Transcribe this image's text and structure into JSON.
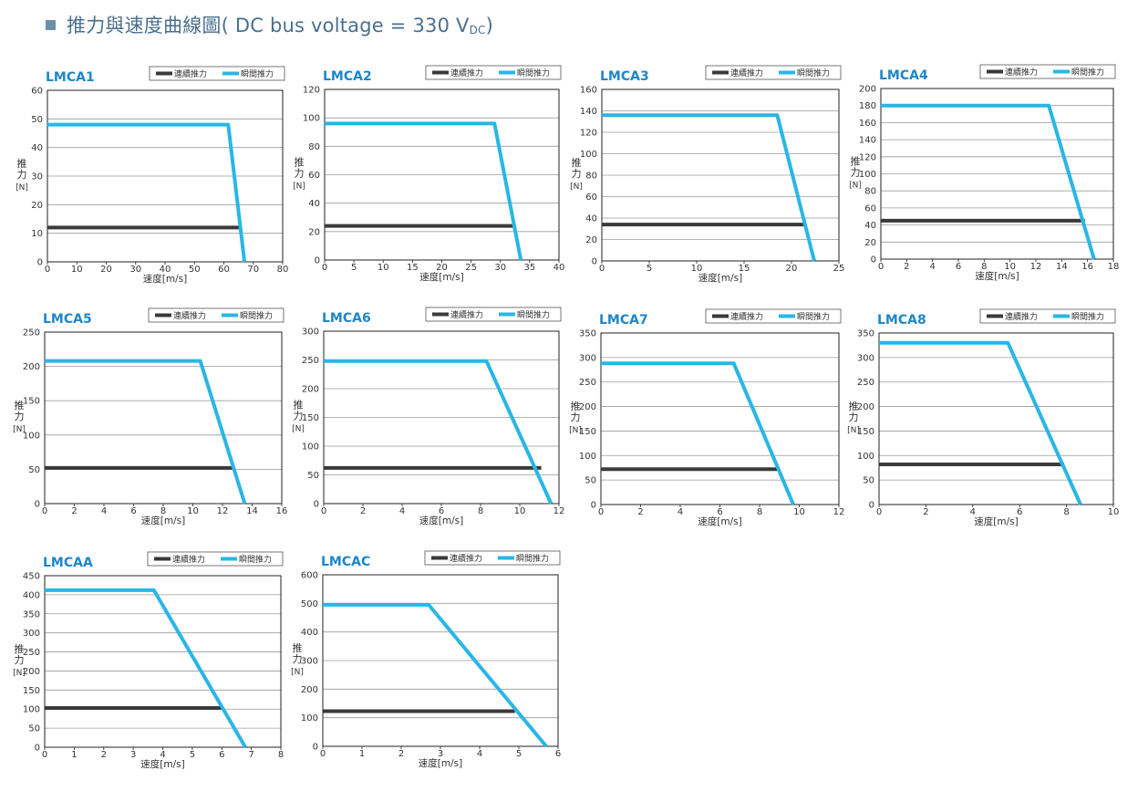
{
  "page": {
    "title_main": "推力與速度曲線圖( DC bus voltage = 330 V",
    "title_sub": "DC",
    "title_end": ")"
  },
  "colors": {
    "continuous": "#3a3a3a",
    "peak": "#29b6e6",
    "title": "#1f86c8",
    "grid": "#9a9a9a"
  },
  "chart_data": [
    {
      "title": "LMCA1",
      "type": "line",
      "xlabel": "速度[m/s]",
      "ylabel": "推力 [N]",
      "xticks": [
        0,
        10,
        20,
        30,
        40,
        50,
        60,
        70,
        80
      ],
      "yticks": [
        0,
        10,
        20,
        30,
        40,
        50,
        60
      ],
      "xlim": [
        0,
        80
      ],
      "ylim": [
        0,
        60
      ],
      "legend": [
        "連續推力",
        "瞬間推力"
      ],
      "legend_position": "top-right",
      "series": [
        {
          "name": "連續推力",
          "x": [
            0,
            65.5
          ],
          "y": [
            12,
            12
          ]
        },
        {
          "name": "瞬間推力",
          "x": [
            0,
            61.5,
            67
          ],
          "y": [
            48,
            48,
            0
          ]
        }
      ]
    },
    {
      "title": "LMCA2",
      "type": "line",
      "xlabel": "速度[m/s]",
      "ylabel": "推力 [N]",
      "xticks": [
        0,
        5,
        10,
        15,
        20,
        25,
        30,
        35,
        40
      ],
      "yticks": [
        0,
        20,
        40,
        60,
        80,
        100,
        120
      ],
      "xlim": [
        0,
        40
      ],
      "ylim": [
        0,
        120
      ],
      "legend": [
        "連續推力",
        "瞬間推力"
      ],
      "legend_position": "top-right",
      "series": [
        {
          "name": "連續推力",
          "x": [
            0,
            32.5
          ],
          "y": [
            24,
            24
          ]
        },
        {
          "name": "瞬間推力",
          "x": [
            0,
            29,
            33.5
          ],
          "y": [
            96,
            96,
            0
          ]
        }
      ]
    },
    {
      "title": "LMCA3",
      "type": "line",
      "xlabel": "速度[m/s]",
      "ylabel": "推力 [N]",
      "xticks": [
        0,
        5,
        10,
        15,
        20,
        25
      ],
      "yticks": [
        0,
        20,
        40,
        60,
        80,
        100,
        120,
        140,
        160
      ],
      "xlim": [
        0,
        25
      ],
      "ylim": [
        0,
        160
      ],
      "legend": [
        "連續推力",
        "瞬間推力"
      ],
      "legend_position": "top-right",
      "series": [
        {
          "name": "連續推力",
          "x": [
            0,
            21.3
          ],
          "y": [
            34,
            34
          ]
        },
        {
          "name": "瞬間推力",
          "x": [
            0,
            18.5,
            22.4
          ],
          "y": [
            136,
            136,
            0
          ]
        }
      ]
    },
    {
      "title": "LMCA4",
      "type": "line",
      "xlabel": "速度[m/s]",
      "ylabel": "推力 [N]",
      "xticks": [
        0,
        2,
        4,
        6,
        8,
        10,
        12,
        14,
        16,
        18
      ],
      "yticks": [
        0,
        20,
        40,
        60,
        80,
        100,
        120,
        140,
        160,
        180,
        200
      ],
      "xlim": [
        0,
        18
      ],
      "ylim": [
        0,
        200
      ],
      "legend": [
        "連續推力",
        "瞬間推力"
      ],
      "legend_position": "top-right",
      "series": [
        {
          "name": "連續推力",
          "x": [
            0,
            15.8
          ],
          "y": [
            45,
            45
          ]
        },
        {
          "name": "瞬間推力",
          "x": [
            0,
            13,
            16.5
          ],
          "y": [
            180,
            180,
            0
          ]
        }
      ]
    },
    {
      "title": "LMCA5",
      "type": "line",
      "xlabel": "速度[m/s]",
      "ylabel": "推力 [N]",
      "xticks": [
        0,
        2,
        4,
        6,
        8,
        10,
        12,
        14,
        16
      ],
      "yticks": [
        0,
        50,
        100,
        150,
        200,
        250
      ],
      "xlim": [
        0,
        16
      ],
      "ylim": [
        0,
        250
      ],
      "legend": [
        "連續推力",
        "瞬間推力"
      ],
      "legend_position": "top-right",
      "series": [
        {
          "name": "連續推力",
          "x": [
            0,
            12.8
          ],
          "y": [
            52,
            52
          ]
        },
        {
          "name": "瞬間推力",
          "x": [
            0,
            10.5,
            13.5
          ],
          "y": [
            208,
            208,
            0
          ]
        }
      ]
    },
    {
      "title": "LMCA6",
      "type": "line",
      "xlabel": "速度[m/s]",
      "ylabel": "推力 [N]",
      "xticks": [
        0,
        2,
        4,
        6,
        8,
        10,
        12
      ],
      "yticks": [
        0,
        50,
        100,
        150,
        200,
        250,
        300
      ],
      "xlim": [
        0,
        12
      ],
      "ylim": [
        0,
        300
      ],
      "legend": [
        "連續推力",
        "瞬間推力"
      ],
      "legend_position": "top-right",
      "series": [
        {
          "name": "連續推力",
          "x": [
            0,
            11.1
          ],
          "y": [
            62,
            62
          ]
        },
        {
          "name": "瞬間推力",
          "x": [
            0,
            8.3,
            11.6
          ],
          "y": [
            248,
            248,
            0
          ]
        }
      ]
    },
    {
      "title": "LMCA7",
      "type": "line",
      "xlabel": "速度[m/s]",
      "ylabel": "推力 [N]",
      "xticks": [
        0,
        2,
        4,
        6,
        8,
        10,
        12
      ],
      "yticks": [
        0,
        50,
        100,
        150,
        200,
        250,
        300,
        350
      ],
      "xlim": [
        0,
        12
      ],
      "ylim": [
        0,
        350
      ],
      "legend": [
        "連續推力",
        "瞬間推力"
      ],
      "legend_position": "top-right",
      "series": [
        {
          "name": "連續推力",
          "x": [
            0,
            9
          ],
          "y": [
            72,
            72
          ]
        },
        {
          "name": "瞬間推力",
          "x": [
            0,
            6.7,
            9.7
          ],
          "y": [
            288,
            288,
            0
          ]
        }
      ]
    },
    {
      "title": "LMCA8",
      "type": "line",
      "xlabel": "速度[m/s]",
      "ylabel": "推力 [N]",
      "xticks": [
        0,
        2,
        4,
        6,
        8,
        10
      ],
      "yticks": [
        0,
        50,
        100,
        150,
        200,
        250,
        300,
        350
      ],
      "xlim": [
        0,
        10
      ],
      "ylim": [
        0,
        350
      ],
      "legend": [
        "連續推力",
        "瞬間推力"
      ],
      "legend_position": "top-right",
      "series": [
        {
          "name": "連續推力",
          "x": [
            0,
            7.9
          ],
          "y": [
            82,
            82
          ]
        },
        {
          "name": "瞬間推力",
          "x": [
            0,
            5.5,
            8.6
          ],
          "y": [
            330,
            330,
            0
          ]
        }
      ]
    },
    {
      "title": "LMCAA",
      "type": "line",
      "xlabel": "速度[m/s]",
      "ylabel": "推力 [N]",
      "xticks": [
        0,
        1,
        2,
        3,
        4,
        5,
        6,
        7,
        8
      ],
      "yticks": [
        0,
        50,
        100,
        150,
        200,
        250,
        300,
        350,
        400,
        450
      ],
      "xlim": [
        0,
        8
      ],
      "ylim": [
        0,
        450
      ],
      "legend": [
        "連續推力",
        "瞬間推力"
      ],
      "legend_position": "top-right",
      "series": [
        {
          "name": "連續推力",
          "x": [
            0,
            6
          ],
          "y": [
            103,
            103
          ]
        },
        {
          "name": "瞬間推力",
          "x": [
            0,
            3.7,
            6.8
          ],
          "y": [
            412,
            412,
            0
          ]
        }
      ]
    },
    {
      "title": "LMCAC",
      "type": "line",
      "xlabel": "速度[m/s]",
      "ylabel": "推力 [N]",
      "xticks": [
        0,
        1,
        2,
        3,
        4,
        5,
        6
      ],
      "yticks": [
        0,
        100,
        200,
        300,
        400,
        500,
        600
      ],
      "xlim": [
        0,
        6
      ],
      "ylim": [
        0,
        600
      ],
      "legend": [
        "連續推力",
        "瞬間推力"
      ],
      "legend_position": "top-right",
      "series": [
        {
          "name": "連續推力",
          "x": [
            0,
            4.9
          ],
          "y": [
            123,
            123
          ]
        },
        {
          "name": "瞬間推力",
          "x": [
            0,
            2.7,
            5.7
          ],
          "y": [
            495,
            495,
            0
          ]
        }
      ]
    }
  ]
}
